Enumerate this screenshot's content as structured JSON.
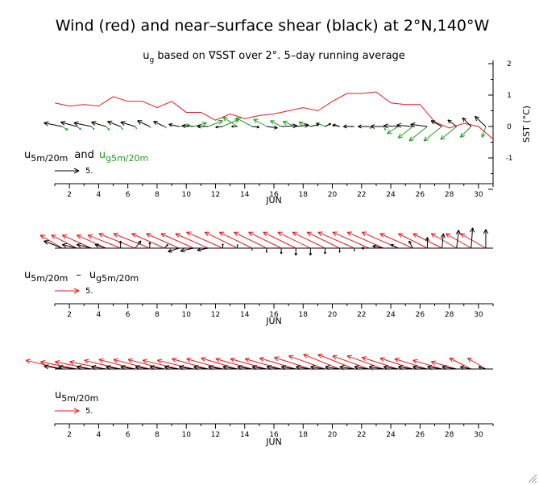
{
  "title": "Wind (red) and near–surface shear (black) at 2°N,140°W",
  "subtitle": "u_g based on ∇SST over 2°. 5–day running average",
  "colors": {
    "wind": "#e8191c",
    "shear": "#000000",
    "geo": "#1f9e1f",
    "sst": "#e8191c"
  },
  "chart_data": [
    {
      "type": "vector",
      "panel": 1,
      "xlabel": "JUN",
      "x_ticks": [
        2,
        4,
        6,
        8,
        10,
        12,
        14,
        16,
        18,
        20,
        22,
        24,
        26,
        28,
        30
      ],
      "xlim": [
        1,
        31
      ],
      "y2label": "SST (°C)",
      "y2_ticks": [
        2,
        1,
        0,
        -1
      ],
      "y2lim": [
        -2,
        2
      ],
      "sst_x": [
        1,
        2,
        3,
        4,
        5,
        6,
        7,
        8,
        9,
        10,
        11,
        12,
        13,
        14,
        15,
        16,
        17,
        18,
        19,
        20,
        21,
        22,
        23,
        24,
        25,
        26,
        27,
        28,
        29,
        30,
        31
      ],
      "sst_y": [
        0.75,
        0.65,
        0.7,
        0.65,
        0.95,
        0.8,
        0.8,
        0.6,
        0.8,
        0.45,
        0.45,
        0.2,
        0.4,
        0.25,
        0.35,
        0.4,
        0.5,
        0.6,
        0.5,
        0.8,
        1.05,
        1.05,
        1.1,
        0.75,
        0.7,
        0.7,
        0.15,
        -0.05,
        0.1,
        0.0,
        -0.4
      ],
      "legend": {
        "text1": "u",
        "sub1": "5m/20m",
        "and": "and",
        "text2": "u",
        "sub2": "g5m/20m",
        "scale_label": "5."
      },
      "shear_u": [
        -2.5,
        -2.2,
        -2.4,
        -2.0,
        -1.8,
        -2.0,
        -1.7,
        -1.5,
        -1.4,
        -1.6,
        -1.5,
        -1.0,
        -0.8,
        1.0,
        1.5,
        2.2,
        1.8,
        1.2,
        0.8,
        -1.0,
        -1.5,
        -1.5,
        -1.8,
        -2.0,
        -2.2,
        -2.3,
        -1.5,
        -1.2,
        -1.2,
        -1.5
      ],
      "shear_v": [
        0.5,
        0.6,
        0.5,
        0.6,
        0.7,
        0.6,
        0.8,
        0.7,
        0.3,
        0.1,
        0.0,
        -0.1,
        0.0,
        -0.1,
        -0.2,
        0.1,
        0.2,
        0.3,
        0.4,
        0.2,
        0.0,
        0.0,
        0.0,
        0.1,
        0.2,
        0.3,
        0.8,
        0.9,
        1.2,
        1.4
      ],
      "geo_u": [
        0.8,
        0.6,
        0.4,
        0.5,
        0.3,
        0.2,
        0.1,
        0.3,
        1.5,
        1.8,
        2.0,
        2.2,
        -2.0,
        -2.2,
        -1.8,
        -1.5,
        -1.8,
        -1.6,
        -1.2,
        -0.8,
        -0.4,
        0.3,
        0.3,
        -1.5,
        -2.0,
        -2.5,
        -2.5,
        -2.2,
        -1.5,
        -0.5
      ],
      "geo_v": [
        -0.5,
        -0.4,
        -0.4,
        -0.5,
        -0.4,
        -0.3,
        -0.2,
        -0.2,
        0.2,
        0.5,
        0.8,
        1.0,
        1.3,
        1.2,
        1.0,
        0.8,
        0.7,
        0.6,
        0.5,
        0.3,
        0.0,
        -0.3,
        -0.5,
        -1.0,
        -1.6,
        -2.0,
        -2.0,
        -1.8,
        -1.5,
        -1.5
      ]
    },
    {
      "type": "vector",
      "panel": 2,
      "xlabel": "JUN",
      "x_ticks": [
        2,
        4,
        6,
        8,
        10,
        12,
        14,
        16,
        18,
        20,
        22,
        24,
        26,
        28,
        30
      ],
      "xlim": [
        1,
        31
      ],
      "legend": {
        "text1": "u",
        "sub1": "5m/20m",
        "minus": "–",
        "text2": "u",
        "sub2": "g5m/20m",
        "scale_label": "5."
      },
      "wind_u": [
        -3.0,
        -3.5,
        -4.0,
        -4.0,
        -4.5,
        -5.0,
        -5.0,
        -4.5,
        -4.5,
        -4.5,
        -4.5,
        -5.0,
        -4.5,
        -4.5,
        -4.5,
        -4.5,
        -4.5,
        -4.5,
        -4.5,
        -4.5,
        -5.0,
        -5.0,
        -5.0,
        -5.0,
        -4.5,
        -4.0,
        -4.0,
        -3.5,
        -3.5,
        -3.5
      ],
      "wind_v": [
        1.8,
        1.8,
        1.8,
        1.8,
        1.8,
        2.0,
        2.0,
        2.0,
        2.0,
        2.0,
        2.0,
        2.2,
        2.2,
        2.2,
        2.2,
        2.2,
        2.2,
        2.2,
        2.2,
        2.2,
        2.2,
        2.2,
        2.2,
        2.2,
        2.0,
        2.0,
        2.0,
        2.0,
        2.0,
        2.0
      ],
      "shear_u": [
        -2.5,
        -2.0,
        -2.0,
        -1.5,
        0.0,
        0.8,
        0.0,
        0.5,
        -1.5,
        -1.8,
        -1.5,
        0.0,
        0.0,
        0.0,
        0.0,
        0.0,
        0.0,
        0.0,
        0.0,
        0.0,
        0.0,
        -1.0,
        -1.5,
        -1.0,
        -0.5,
        0.0,
        0.2,
        0.3,
        0.2,
        0.0
      ],
      "shear_v": [
        1.0,
        0.5,
        0.5,
        0.5,
        1.0,
        1.0,
        0.8,
        0.5,
        -0.5,
        -0.4,
        -0.3,
        0.6,
        0.5,
        -0.3,
        -0.6,
        -0.8,
        -1.0,
        -1.0,
        -0.8,
        -0.6,
        -0.4,
        0.0,
        0.3,
        0.5,
        1.0,
        1.5,
        2.0,
        2.5,
        2.8,
        2.6
      ]
    },
    {
      "type": "vector",
      "panel": 3,
      "xlabel": "JUN",
      "x_ticks": [
        2,
        4,
        6,
        8,
        10,
        12,
        14,
        16,
        18,
        20,
        22,
        24,
        26,
        28,
        30
      ],
      "xlim": [
        1,
        31
      ],
      "legend": {
        "text1": "u",
        "sub1": "5m/20m",
        "scale_label": "5."
      },
      "wind_u": [
        -5.0,
        -5.0,
        -5.0,
        -5.0,
        -5.0,
        -5.0,
        -5.0,
        -5.0,
        -5.0,
        -5.0,
        -5.0,
        -5.0,
        -5.0,
        -5.0,
        -5.0,
        -5.0,
        -5.0,
        -5.0,
        -5.0,
        -5.0,
        -5.0,
        -5.0,
        -5.0,
        -5.0,
        -4.5,
        -4.5,
        -4.0,
        -3.5,
        -3.0,
        -2.5
      ],
      "wind_v": [
        1.2,
        1.0,
        1.0,
        1.0,
        1.2,
        1.3,
        1.3,
        1.3,
        1.2,
        1.2,
        1.4,
        1.4,
        1.5,
        1.4,
        1.4,
        1.4,
        1.5,
        1.6,
        1.8,
        2.0,
        2.0,
        1.8,
        1.8,
        1.6,
        1.5,
        1.4,
        1.2,
        1.0,
        1.5,
        1.5
      ],
      "shear_u": [
        -2.5,
        -2.5,
        -2.0,
        -2.0,
        -2.0,
        -2.0,
        -2.0,
        -2.0,
        -2.0,
        -2.0,
        -2.0,
        -2.0,
        -2.0,
        -2.0,
        -2.0,
        -2.0,
        -2.0,
        -2.0,
        -2.0,
        -2.0,
        -2.0,
        -2.0,
        -2.0,
        -2.0,
        -2.0,
        -2.0,
        -2.0,
        -2.0,
        -1.5,
        -1.0
      ],
      "shear_v": [
        0.4,
        0.3,
        0.3,
        0.3,
        0.3,
        0.3,
        0.3,
        0.3,
        0.3,
        0.3,
        0.3,
        0.3,
        0.3,
        0.3,
        0.3,
        0.3,
        0.3,
        0.3,
        0.3,
        0.3,
        0.3,
        0.3,
        0.3,
        0.3,
        0.3,
        0.3,
        0.3,
        0.3,
        0.3,
        0.3
      ]
    }
  ]
}
